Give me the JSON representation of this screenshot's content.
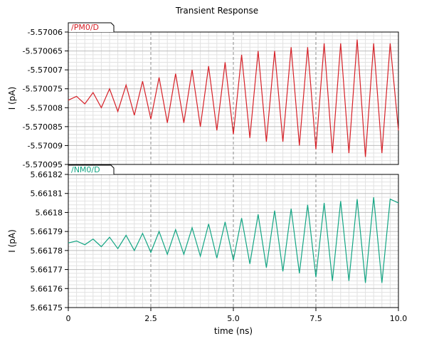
{
  "chart_data": {
    "title": "Transient Response",
    "type": "line",
    "xlabel": "time (ns)",
    "xlim": [
      0,
      10
    ],
    "x_ticks": [
      0,
      2.5,
      5.0,
      7.5,
      10.0
    ],
    "x_tick_labels": [
      "0",
      "2.5",
      "5.0",
      "7.5",
      "10.0"
    ],
    "panels": [
      {
        "name": "/PM0/D",
        "color": "#d62027",
        "ylabel": "I (pA)",
        "ylim": [
          -5.570095,
          -5.57006
        ],
        "y_ticks": [
          -5.57006,
          -5.570065,
          -5.57007,
          -5.570075,
          -5.57008,
          -5.570085,
          -5.57009,
          -5.570095
        ],
        "y_tick_labels": [
          "-5.57006",
          "-5.570065",
          "-5.57007",
          "-5.570075",
          "-5.57008",
          "-5.570085",
          "-5.57009",
          "-5.570095"
        ],
        "series": {
          "x": [
            0,
            0.25,
            0.5,
            0.75,
            1.0,
            1.25,
            1.5,
            1.75,
            2.0,
            2.25,
            2.5,
            2.75,
            3.0,
            3.25,
            3.5,
            3.75,
            4.0,
            4.25,
            4.5,
            4.75,
            5.0,
            5.25,
            5.5,
            5.75,
            6.0,
            6.25,
            6.5,
            6.75,
            7.0,
            7.25,
            7.5,
            7.75,
            8.0,
            8.25,
            8.5,
            8.75,
            9.0,
            9.25,
            9.5,
            9.75,
            10.0
          ],
          "values": [
            -5.570078,
            -5.570077,
            -5.570079,
            -5.570076,
            -5.57008,
            -5.570075,
            -5.570081,
            -5.570074,
            -5.570082,
            -5.570073,
            -5.570083,
            -5.570072,
            -5.570084,
            -5.570071,
            -5.570084,
            -5.57007,
            -5.570085,
            -5.570069,
            -5.570086,
            -5.570068,
            -5.570087,
            -5.570066,
            -5.570088,
            -5.570065,
            -5.570089,
            -5.570065,
            -5.570089,
            -5.570064,
            -5.57009,
            -5.570064,
            -5.570091,
            -5.570063,
            -5.570092,
            -5.570063,
            -5.570092,
            -5.570062,
            -5.570093,
            -5.570063,
            -5.570092,
            -5.570063,
            -5.570086
          ]
        }
      },
      {
        "name": "/NM0/D",
        "color": "#12a583",
        "ylabel": "I (pA)",
        "ylim": [
          5.66175,
          5.66182
        ],
        "y_ticks": [
          5.66182,
          5.66181,
          5.6618,
          5.66179,
          5.66178,
          5.66177,
          5.66176,
          5.66175
        ],
        "y_tick_labels": [
          "5.66182",
          "5.66181",
          "5.6618",
          "5.66179",
          "5.66178",
          "5.66177",
          "5.66176",
          "5.66175"
        ],
        "series": {
          "x": [
            0,
            0.25,
            0.5,
            0.75,
            1.0,
            1.25,
            1.5,
            1.75,
            2.0,
            2.25,
            2.5,
            2.75,
            3.0,
            3.25,
            3.5,
            3.75,
            4.0,
            4.25,
            4.5,
            4.75,
            5.0,
            5.25,
            5.5,
            5.75,
            6.0,
            6.25,
            6.5,
            6.75,
            7.0,
            7.25,
            7.5,
            7.75,
            8.0,
            8.25,
            8.5,
            8.75,
            9.0,
            9.25,
            9.5,
            9.75,
            10.0
          ],
          "values": [
            5.661784,
            5.661785,
            5.661783,
            5.661786,
            5.661782,
            5.661787,
            5.661781,
            5.661788,
            5.66178,
            5.661789,
            5.661779,
            5.66179,
            5.661778,
            5.661791,
            5.661778,
            5.661792,
            5.661777,
            5.661794,
            5.661776,
            5.661795,
            5.661775,
            5.661797,
            5.661773,
            5.661799,
            5.661771,
            5.661801,
            5.661769,
            5.661802,
            5.661768,
            5.661804,
            5.661766,
            5.661805,
            5.661764,
            5.661806,
            5.661764,
            5.661807,
            5.661763,
            5.661808,
            5.661763,
            5.661807,
            5.661805
          ]
        }
      }
    ]
  }
}
